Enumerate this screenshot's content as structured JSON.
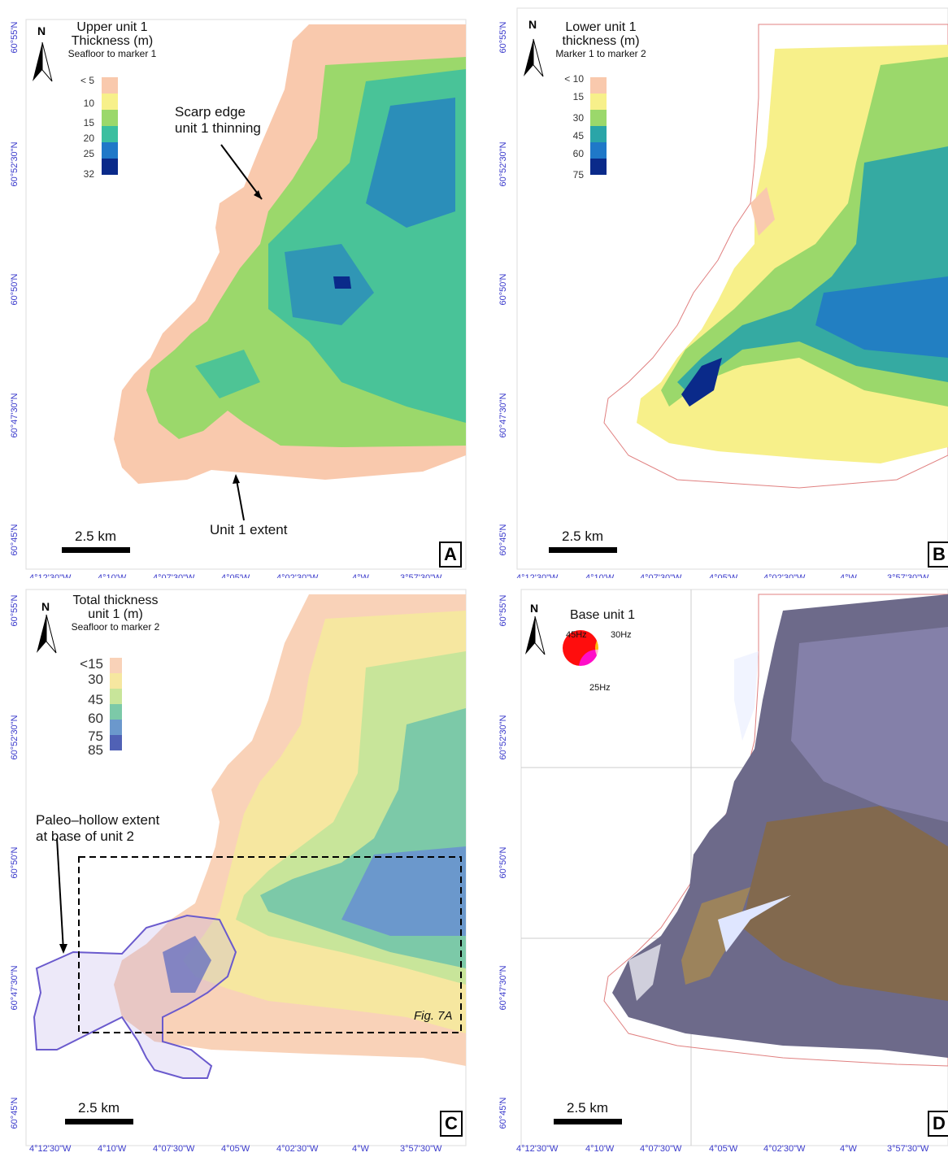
{
  "latitudes": [
    "60°55'N",
    "60°52'30\"N",
    "60°50'N",
    "60°47'30\"N",
    "60°45'N"
  ],
  "longitudes": [
    "4°12'30\"W",
    "4°10'W",
    "4°07'30\"W",
    "4°05'W",
    "4°02'30\"W",
    "4°W",
    "3°57'30\"W"
  ],
  "north_label": "N",
  "scale_label": "2.5 km",
  "panels": {
    "a": {
      "letter": "A",
      "legend_title": "Upper unit 1",
      "legend_title2": "Thickness (m)",
      "legend_sub": "Seafloor to marker 1",
      "ticks": [
        "< 5",
        "10",
        "15",
        "20",
        "25",
        "32"
      ],
      "colors": [
        "#f9c9ad",
        "#f7f08a",
        "#9bd86b",
        "#3bbfa0",
        "#1f78c8",
        "#0a2a8a"
      ],
      "annot_scarp_1": "Scarp edge",
      "annot_scarp_2": "unit 1 thinning",
      "annot_extent": "Unit 1 extent"
    },
    "b": {
      "letter": "B",
      "legend_title": "Lower unit 1",
      "legend_title2": "thickness (m)",
      "legend_sub": "Marker 1 to marker 2",
      "ticks": [
        "< 10",
        "15",
        "30",
        "45",
        "60",
        "75"
      ],
      "colors": [
        "#f9c9ad",
        "#f7f08a",
        "#9bd86b",
        "#2aa5a8",
        "#1f78c8",
        "#0a2a8a"
      ]
    },
    "c": {
      "letter": "C",
      "legend_title": "Total thickness",
      "legend_title2": "unit 1 (m)",
      "legend_sub": "Seafloor to marker 2",
      "ticks": [
        "<15",
        "30",
        "45",
        "60",
        "75",
        "85"
      ],
      "colors": [
        "#f9d2b8",
        "#f6e7a0",
        "#c8e59a",
        "#7cc9a8",
        "#6b98cc",
        "#5061b5"
      ],
      "annot_hollow_1": "Paleo–hollow extent",
      "annot_hollow_2": "at base of unit 2",
      "box_label": "Fig. 7A"
    },
    "d": {
      "letter": "D",
      "legend_title": "Base unit 1",
      "rgb_labels": [
        "45Hz",
        "30Hz",
        "25Hz"
      ]
    }
  }
}
